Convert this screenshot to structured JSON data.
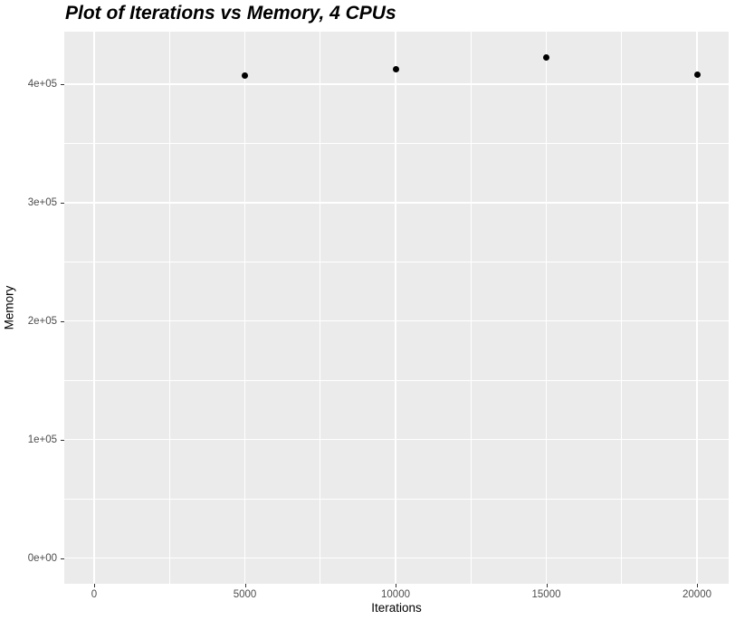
{
  "title": "Plot of Iterations vs Memory, 4 CPUs",
  "colors": {
    "panel_bg": "#EBEBEB",
    "grid_major": "#FFFFFF",
    "grid_minor": "#FFFFFF",
    "point": "#000000",
    "tick_label": "#4D4D4D",
    "tick_mark": "#333333",
    "axis_title": "#000000",
    "title": "#000000",
    "figure_bg": "#FFFFFF"
  },
  "chart_data": {
    "type": "scatter",
    "title": "Plot of Iterations vs Memory, 4 CPUs",
    "xlabel": "Iterations",
    "ylabel": "Memory",
    "points": [
      {
        "x": 5000,
        "y": 407000
      },
      {
        "x": 10000,
        "y": 412000
      },
      {
        "x": 15000,
        "y": 422000
      },
      {
        "x": 20000,
        "y": 408000
      }
    ],
    "x_ticks": [
      {
        "value": 0,
        "label": "0"
      },
      {
        "value": 5000,
        "label": "5000"
      },
      {
        "value": 10000,
        "label": "10000"
      },
      {
        "value": 15000,
        "label": "15000"
      },
      {
        "value": 20000,
        "label": "20000"
      }
    ],
    "y_ticks": [
      {
        "value": 0,
        "label": "0e+00"
      },
      {
        "value": 100000,
        "label": "1e+05"
      },
      {
        "value": 200000,
        "label": "2e+05"
      },
      {
        "value": 300000,
        "label": "3e+05"
      },
      {
        "value": 400000,
        "label": "4e+05"
      }
    ],
    "x_minor": [
      2500,
      7500,
      12500,
      17500
    ],
    "y_minor": [
      50000,
      150000,
      250000,
      350000
    ],
    "xlim": [
      -991,
      21051
    ],
    "ylim": [
      -21700,
      444000
    ],
    "grid": true,
    "legend": "none"
  }
}
